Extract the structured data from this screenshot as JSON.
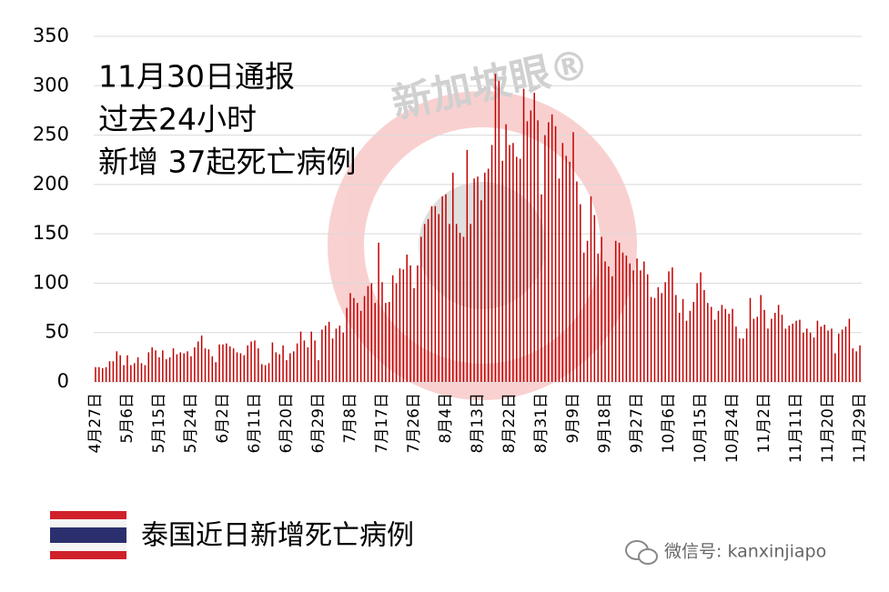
{
  "chart_data": {
    "type": "bar",
    "annotations": [
      "11月30日通报",
      "过去24小时",
      "新增 37起死亡病例"
    ],
    "watermark": "新加坡眼®",
    "source": "微信号: kanxinjiapo",
    "categories": [
      "4月27日",
      null,
      null,
      null,
      null,
      null,
      null,
      null,
      null,
      "5月6日",
      null,
      null,
      null,
      null,
      null,
      null,
      null,
      null,
      "5月15日",
      null,
      null,
      null,
      null,
      null,
      null,
      null,
      null,
      "5月24日",
      null,
      null,
      null,
      null,
      null,
      null,
      null,
      null,
      "6月2日",
      null,
      null,
      null,
      null,
      null,
      null,
      null,
      null,
      "6月11日",
      null,
      null,
      null,
      null,
      null,
      null,
      null,
      null,
      "6月20日",
      null,
      null,
      null,
      null,
      null,
      null,
      null,
      null,
      "6月29日",
      null,
      null,
      null,
      null,
      null,
      null,
      null,
      null,
      "7月8日",
      null,
      null,
      null,
      null,
      null,
      null,
      null,
      null,
      "7月17日",
      null,
      null,
      null,
      null,
      null,
      null,
      null,
      null,
      "7月26日",
      null,
      null,
      null,
      null,
      null,
      null,
      null,
      null,
      "8月4日",
      null,
      null,
      null,
      null,
      null,
      null,
      null,
      null,
      "8月13日",
      null,
      null,
      null,
      null,
      null,
      null,
      null,
      null,
      "8月22日",
      null,
      null,
      null,
      null,
      null,
      null,
      null,
      null,
      "8月31日",
      null,
      null,
      null,
      null,
      null,
      null,
      null,
      null,
      "9月9日",
      null,
      null,
      null,
      null,
      null,
      null,
      null,
      null,
      "9月18日",
      null,
      null,
      null,
      null,
      null,
      null,
      null,
      null,
      "9月27日",
      null,
      null,
      null,
      null,
      null,
      null,
      null,
      null,
      "10月6日",
      null,
      null,
      null,
      null,
      null,
      null,
      null,
      null,
      "10月15日",
      null,
      null,
      null,
      null,
      null,
      null,
      null,
      null,
      "10月24日",
      null,
      null,
      null,
      null,
      null,
      null,
      null,
      null,
      "11月2日",
      null,
      null,
      null,
      null,
      null,
      null,
      null,
      null,
      "11月11日",
      null,
      null,
      null,
      null,
      null,
      null,
      null,
      null,
      "11月20日",
      null,
      null,
      null,
      null,
      null,
      null,
      null,
      null,
      "11月29日"
    ],
    "series": [
      {
        "name": "泰国近日新增死亡病例",
        "color": "#c00000",
        "values": [
          15,
          15,
          14,
          15,
          21,
          21,
          31,
          27,
          17,
          27,
          17,
          19,
          25,
          19,
          17,
          30,
          35,
          32,
          25,
          32,
          23,
          25,
          34,
          28,
          30,
          29,
          31,
          26,
          35,
          41,
          47,
          34,
          33,
          26,
          20,
          38,
          38,
          39,
          36,
          34,
          30,
          29,
          27,
          37,
          41,
          42,
          34,
          18,
          17,
          19,
          40,
          30,
          28,
          37,
          22,
          29,
          31,
          39,
          51,
          42,
          35,
          51,
          42,
          22,
          53,
          57,
          61,
          44,
          54,
          57,
          50,
          75,
          90,
          85,
          80,
          72,
          87,
          97,
          100,
          80,
          141,
          101,
          80,
          81,
          108,
          100,
          115,
          114,
          129,
          118,
          95,
          118,
          147,
          160,
          165,
          178,
          178,
          170,
          188,
          190,
          160,
          212,
          160,
          151,
          147,
          235,
          160,
          206,
          208,
          184,
          212,
          216,
          240,
          312,
          305,
          224,
          261,
          240,
          242,
          228,
          226,
          297,
          264,
          275,
          293,
          265,
          190,
          250,
          263,
          271,
          259,
          206,
          242,
          229,
          223,
          253,
          203,
          180,
          131,
          143,
          188,
          169,
          130,
          147,
          122,
          117,
          107,
          143,
          141,
          131,
          128,
          120,
          113,
          125,
          113,
          122,
          109,
          86,
          85,
          96,
          90,
          101,
          112,
          116,
          88,
          70,
          84,
          62,
          72,
          81,
          100,
          111,
          93,
          80,
          76,
          63,
          72,
          78,
          74,
          69,
          74,
          56,
          44,
          44,
          54,
          85,
          64,
          66,
          88,
          73,
          54,
          64,
          70,
          78,
          68,
          54,
          57,
          59,
          62,
          63,
          50,
          54,
          50,
          45,
          62,
          56,
          58,
          52,
          54,
          29,
          49,
          53,
          56,
          64,
          34,
          31,
          37
        ]
      }
    ],
    "ylim": [
      0,
      350
    ],
    "yticks": [
      0,
      50,
      100,
      150,
      200,
      250,
      300,
      350
    ],
    "grid": true
  }
}
